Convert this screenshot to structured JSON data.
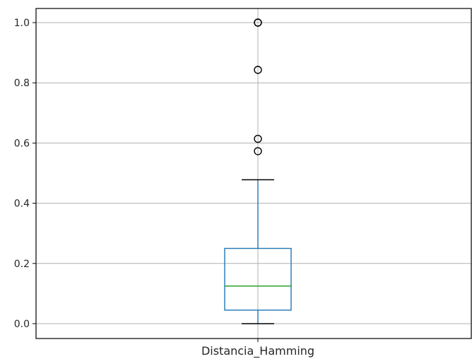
{
  "chart_data": {
    "type": "box",
    "categories": [
      "Distancia_Hamming"
    ],
    "ylim": [
      -0.05,
      1.045
    ],
    "yticks": [
      {
        "value": 0.0,
        "label": "0.0"
      },
      {
        "value": 0.2,
        "label": "0.2"
      },
      {
        "value": 0.4,
        "label": "0.4"
      },
      {
        "value": 0.6,
        "label": "0.6"
      },
      {
        "value": 0.8,
        "label": "0.8"
      },
      {
        "value": 1.0,
        "label": "1.0"
      }
    ],
    "boxes": [
      {
        "name": "Distancia_Hamming",
        "whisker_low": 0.0,
        "q1": 0.045,
        "median": 0.125,
        "q3": 0.25,
        "whisker_high": 0.478,
        "outliers": [
          0.573,
          0.614,
          0.843,
          1.0,
          1.0
        ]
      }
    ],
    "grid": true,
    "colors": {
      "box": "#1f77b4",
      "median": "#2ca02c",
      "whisker": "#000000",
      "grid": "#b0b0b0"
    }
  }
}
